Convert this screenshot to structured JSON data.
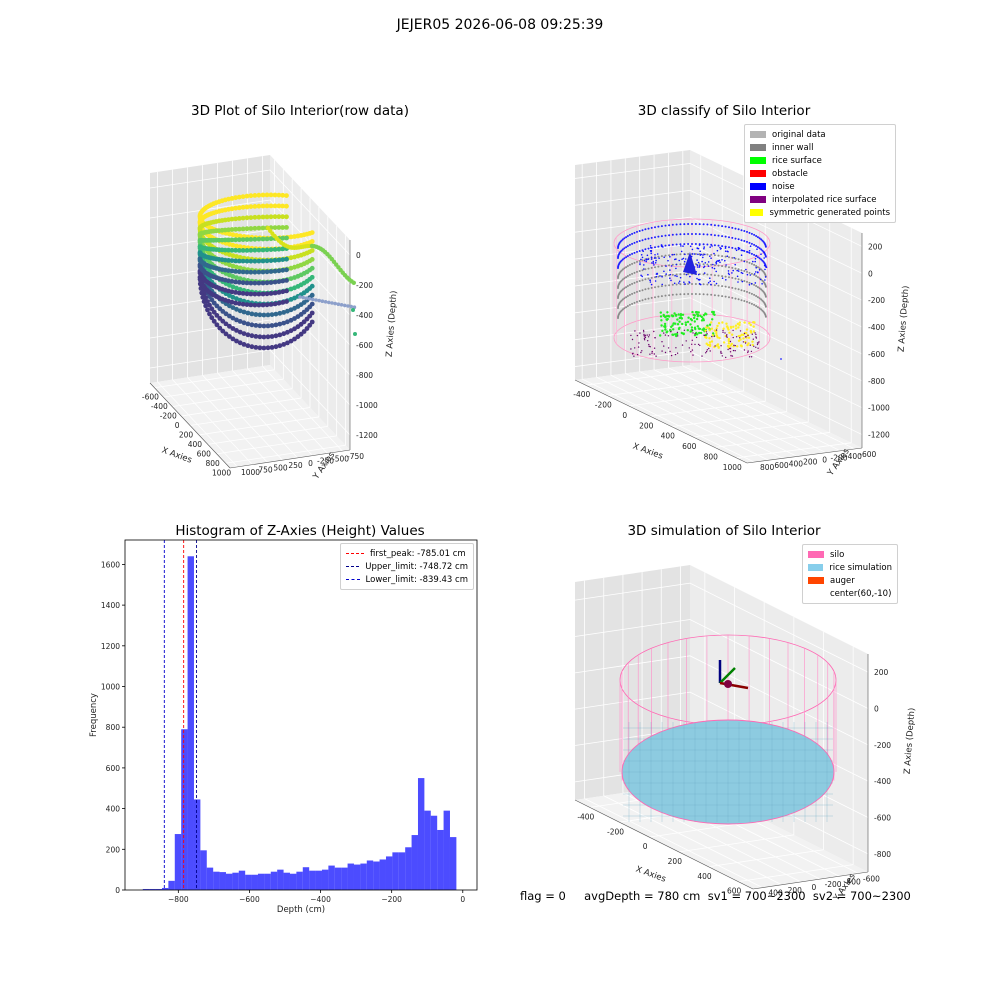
{
  "suptitle": "JEJER05 2026-06-08 09:25:39",
  "panels": {
    "raw": {
      "title": "3D Plot of Silo Interior(row data)",
      "xlabel": "X Axies",
      "ylabel": "Y Axies",
      "zlabel": "Z Axies (Depth)",
      "xticks": [
        "-600",
        "-400",
        "-200",
        "0",
        "200",
        "400",
        "600",
        "800",
        "1000"
      ],
      "yticks": [
        "-750",
        "-500",
        "-250",
        "0",
        "250",
        "500",
        "750",
        "1000"
      ],
      "zticks": [
        "0",
        "-200",
        "-400",
        "-600",
        "-800",
        "-1000",
        "-1200"
      ]
    },
    "classify": {
      "title": "3D classify of Silo Interior",
      "xlabel": "X Axies",
      "ylabel": "Y Axies",
      "zlabel": "Z Axies (Depth)",
      "xticks": [
        "-400",
        "-200",
        "0",
        "200",
        "400",
        "600",
        "800",
        "1000"
      ],
      "yticks": [
        "-600",
        "-400",
        "-200",
        "0",
        "200",
        "400",
        "600",
        "800"
      ],
      "zticks": [
        "200",
        "0",
        "-200",
        "-400",
        "-600",
        "-800",
        "-1000",
        "-1200"
      ],
      "legend": [
        {
          "label": "original data",
          "color": "#b3b3b3"
        },
        {
          "label": "inner wall",
          "color": "#808080"
        },
        {
          "label": "rice surface",
          "color": "#00ff00"
        },
        {
          "label": "obstacle",
          "color": "#ff0000"
        },
        {
          "label": "noise",
          "color": "#0000ff"
        },
        {
          "label": "interpolated rice surface",
          "color": "#800080"
        },
        {
          "label": "symmetric generated points",
          "color": "#ffff00"
        }
      ]
    },
    "simulation": {
      "title": "3D simulation of Silo Interior",
      "xlabel": "X Axies",
      "ylabel": "Y Axies",
      "zlabel": "Z Axies (Depth)",
      "xticks": [
        "-400",
        "-200",
        "0",
        "200",
        "400",
        "600"
      ],
      "yticks": [
        "-600",
        "-400",
        "-200",
        "0",
        "200",
        "400"
      ],
      "zticks": [
        "200",
        "0",
        "-200",
        "-400",
        "-600",
        "-800"
      ],
      "legend": [
        {
          "label": "silo",
          "color": "#ff69b4"
        },
        {
          "label": "rice simulation",
          "color": "#87ceeb"
        },
        {
          "label": "auger",
          "color": "#ff4500"
        },
        {
          "label": "center(60,-10)",
          "color": "#ffffff"
        }
      ]
    }
  },
  "chart_data": {
    "type": "bar",
    "title": "Histogram of Z-Axies (Height) Values",
    "xlabel": "Depth (cm)",
    "ylabel": "Frequency",
    "xlim": [
      -950,
      40
    ],
    "ylim": [
      0,
      1720
    ],
    "xticks": [
      -800,
      -600,
      -400,
      -200,
      0
    ],
    "yticks": [
      0,
      200,
      400,
      600,
      800,
      1000,
      1200,
      1400,
      1600
    ],
    "bin_edges": [
      -900,
      -882,
      -864,
      -846,
      -828,
      -810,
      -792,
      -774,
      -756,
      -738,
      -720,
      -702,
      -684,
      -666,
      -648,
      -630,
      -612,
      -594,
      -576,
      -558,
      -540,
      -522,
      -504,
      -486,
      -468,
      -450,
      -432,
      -414,
      -396,
      -378,
      -360,
      -342,
      -324,
      -306,
      -288,
      -270,
      -252,
      -234,
      -216,
      -198,
      -180,
      -162,
      -144,
      -126,
      -108,
      -90,
      -72,
      -54,
      -36,
      -18,
      0
    ],
    "values": [
      5,
      5,
      5,
      10,
      45,
      275,
      790,
      1640,
      445,
      195,
      110,
      90,
      88,
      80,
      85,
      95,
      75,
      75,
      80,
      80,
      90,
      100,
      85,
      80,
      90,
      112,
      95,
      95,
      100,
      120,
      110,
      110,
      130,
      125,
      130,
      145,
      140,
      150,
      165,
      185,
      185,
      210,
      270,
      550,
      390,
      365,
      295,
      390,
      260,
      0
    ],
    "bar_color": "#0000ff",
    "lines": [
      {
        "label": "first_peak: -785.01 cm",
        "x": -785.01,
        "color": "#ff0000"
      },
      {
        "label": "Upper_limit: -748.72 cm",
        "x": -748.72,
        "color": "#00008b"
      },
      {
        "label": "Lower_limit: -839.43 cm",
        "x": -839.43,
        "color": "#0000cd"
      }
    ],
    "legend_position": "upper right"
  },
  "footer": "flag = 0     avgDepth = 780 cm  sv1 = 700~2300  sv2 = 700~2300"
}
